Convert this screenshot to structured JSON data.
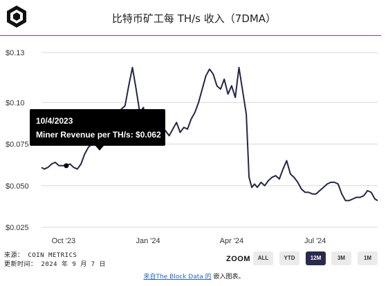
{
  "title": "比特币矿工每 TH/s 收入（7DMA）",
  "colors": {
    "line": "#25244a",
    "divider": "#7a3fb0",
    "grid": "#d8d8d8",
    "active_zoom": "#2a2a4e"
  },
  "tooltip": {
    "date": "10/4/2023",
    "text": "Miner Revenue per TH/s: $0.062"
  },
  "source": {
    "line1": "来源： COIN METRICS",
    "line2": "更新时间： 2024 年 9 月 7 日"
  },
  "zoom": {
    "label": "ZOOM",
    "buttons": [
      "ALL",
      "YTD",
      "12M",
      "3M",
      "1M"
    ],
    "active": "12M"
  },
  "embed": {
    "link_text": "来自The Block Data 的",
    "suffix": " 嵌入图表。"
  },
  "chart_data": {
    "type": "line",
    "title": "比特币矿工每 TH/s 收入（7DMA）",
    "xlabel": "",
    "ylabel": "",
    "ylim": [
      0.025,
      0.13
    ],
    "yticks": [
      0.025,
      0.05,
      0.075,
      0.1,
      0.13
    ],
    "ytick_labels": [
      "$0.025",
      "$0.050",
      "$0.075",
      "$0.10",
      "$0.13"
    ],
    "xticks": [
      "2023-10-01",
      "2024-01-01",
      "2024-04-01",
      "2024-07-01"
    ],
    "xtick_labels": [
      "Oct '23",
      "Jan '24",
      "Apr '24",
      "Jul '24"
    ],
    "xlim": [
      "2023-09-07",
      "2024-09-07"
    ],
    "grid": true,
    "highlight": {
      "x": "2023-10-04",
      "y": 0.062
    },
    "series": [
      {
        "x": [
          "2023-09-07",
          "2023-09-10",
          "2023-09-14",
          "2023-09-18",
          "2023-09-22",
          "2023-09-26",
          "2023-09-30",
          "2023-10-04",
          "2023-10-08",
          "2023-10-12",
          "2023-10-16",
          "2023-10-20",
          "2023-10-24",
          "2023-10-28",
          "2023-11-01",
          "2023-11-05",
          "2023-11-09",
          "2023-11-13",
          "2023-11-17",
          "2023-11-21",
          "2023-11-25",
          "2023-11-29",
          "2023-12-03",
          "2023-12-07",
          "2023-12-11",
          "2023-12-15",
          "2023-12-19",
          "2023-12-23",
          "2023-12-27",
          "2023-12-31",
          "2024-01-04",
          "2024-01-08",
          "2024-01-12",
          "2024-01-16",
          "2024-01-20",
          "2024-01-24",
          "2024-01-28",
          "2024-02-01",
          "2024-02-05",
          "2024-02-09",
          "2024-02-13",
          "2024-02-17",
          "2024-02-21",
          "2024-02-25",
          "2024-02-29",
          "2024-03-04",
          "2024-03-08",
          "2024-03-12",
          "2024-03-16",
          "2024-03-20",
          "2024-03-24",
          "2024-03-28",
          "2024-04-01",
          "2024-04-05",
          "2024-04-09",
          "2024-04-13",
          "2024-04-17",
          "2024-04-20",
          "2024-04-23",
          "2024-04-26",
          "2024-04-29",
          "2024-05-03",
          "2024-05-07",
          "2024-05-11",
          "2024-05-15",
          "2024-05-19",
          "2024-05-23",
          "2024-05-27",
          "2024-05-31",
          "2024-06-04",
          "2024-06-08",
          "2024-06-12",
          "2024-06-16",
          "2024-06-20",
          "2024-06-24",
          "2024-06-28",
          "2024-07-02",
          "2024-07-06",
          "2024-07-10",
          "2024-07-14",
          "2024-07-18",
          "2024-07-22",
          "2024-07-26",
          "2024-07-30",
          "2024-08-03",
          "2024-08-07",
          "2024-08-11",
          "2024-08-15",
          "2024-08-19",
          "2024-08-23",
          "2024-08-27",
          "2024-08-31",
          "2024-09-04",
          "2024-09-07"
        ],
        "y": [
          0.061,
          0.06,
          0.061,
          0.063,
          0.064,
          0.062,
          0.062,
          0.062,
          0.063,
          0.061,
          0.06,
          0.063,
          0.069,
          0.073,
          0.075,
          0.078,
          0.08,
          0.083,
          0.081,
          0.086,
          0.087,
          0.092,
          0.096,
          0.098,
          0.11,
          0.121,
          0.108,
          0.094,
          0.097,
          0.083,
          0.089,
          0.081,
          0.078,
          0.081,
          0.083,
          0.08,
          0.084,
          0.088,
          0.082,
          0.085,
          0.084,
          0.09,
          0.094,
          0.1,
          0.108,
          0.116,
          0.12,
          0.117,
          0.11,
          0.108,
          0.114,
          0.105,
          0.11,
          0.103,
          0.121,
          0.107,
          0.093,
          0.055,
          0.049,
          0.051,
          0.049,
          0.052,
          0.05,
          0.053,
          0.055,
          0.056,
          0.054,
          0.06,
          0.065,
          0.057,
          0.055,
          0.052,
          0.048,
          0.046,
          0.046,
          0.045,
          0.045,
          0.047,
          0.049,
          0.051,
          0.052,
          0.052,
          0.051,
          0.045,
          0.041,
          0.041,
          0.042,
          0.043,
          0.043,
          0.044,
          0.047,
          0.046,
          0.042,
          0.041
        ]
      }
    ]
  }
}
